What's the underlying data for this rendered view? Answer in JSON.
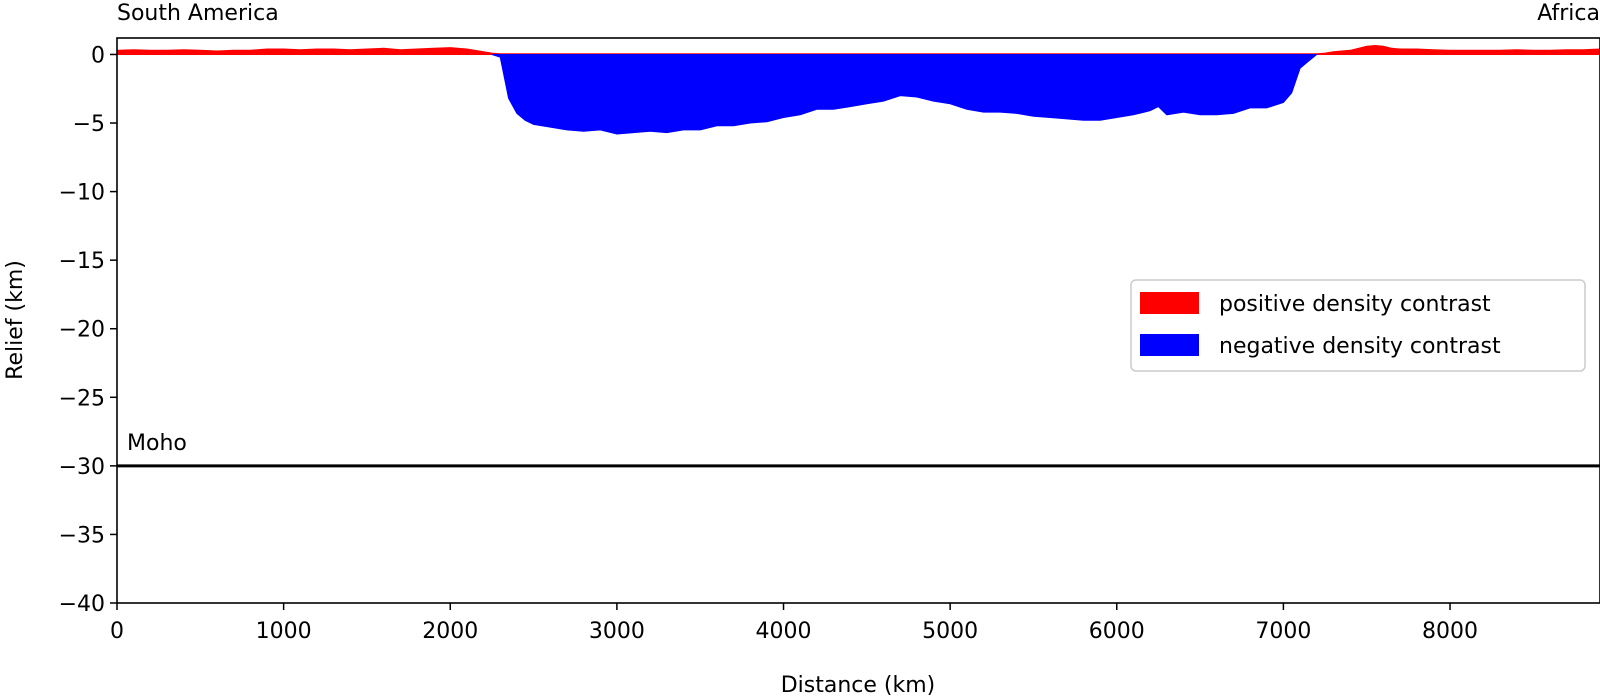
{
  "chart_data": {
    "type": "area",
    "xlabel": "Distance (km)",
    "ylabel": "Relief (km)",
    "xlim": [
      0,
      8900
    ],
    "ylim": [
      -40,
      1.2
    ],
    "xticks": [
      0,
      1000,
      2000,
      3000,
      4000,
      5000,
      6000,
      7000,
      8000
    ],
    "yticks": [
      0,
      -5,
      -10,
      -15,
      -20,
      -25,
      -30,
      -35,
      -40
    ],
    "ytick_labels": [
      "0",
      "−5",
      "−10",
      "−15",
      "−20",
      "−25",
      "−30",
      "−35",
      "−40"
    ],
    "grid": false,
    "legend_position": "center-right",
    "annotations": {
      "left": "South America",
      "right": "Africa",
      "moho": "Moho"
    },
    "moho_depth": -30,
    "series": [
      {
        "name": "positive density contrast",
        "color": "#ff0000",
        "x": [
          0,
          100,
          200,
          300,
          400,
          500,
          600,
          700,
          800,
          900,
          1000,
          1100,
          1200,
          1300,
          1400,
          1500,
          1600,
          1700,
          1800,
          1900,
          2000,
          2100,
          2200,
          2250,
          2300,
          7200,
          7250,
          7300,
          7400,
          7450,
          7500,
          7550,
          7600,
          7650,
          7700,
          7800,
          7900,
          8000,
          8100,
          8200,
          8300,
          8400,
          8500,
          8600,
          8700,
          8800,
          8900
        ],
        "y": [
          0.3,
          0.35,
          0.3,
          0.3,
          0.35,
          0.3,
          0.25,
          0.3,
          0.3,
          0.4,
          0.4,
          0.35,
          0.4,
          0.4,
          0.35,
          0.4,
          0.45,
          0.35,
          0.4,
          0.45,
          0.5,
          0.4,
          0.2,
          0.1,
          0.05,
          0.05,
          0.1,
          0.2,
          0.3,
          0.45,
          0.6,
          0.65,
          0.6,
          0.45,
          0.4,
          0.4,
          0.35,
          0.3,
          0.3,
          0.3,
          0.3,
          0.35,
          0.3,
          0.3,
          0.35,
          0.35,
          0.4
        ]
      },
      {
        "name": "negative density contrast",
        "color": "#0000ff",
        "x": [
          2250,
          2300,
          2350,
          2400,
          2450,
          2500,
          2600,
          2700,
          2800,
          2900,
          3000,
          3100,
          3200,
          3300,
          3400,
          3500,
          3600,
          3700,
          3800,
          3900,
          4000,
          4100,
          4200,
          4300,
          4400,
          4500,
          4600,
          4700,
          4800,
          4900,
          5000,
          5100,
          5200,
          5300,
          5400,
          5500,
          5600,
          5700,
          5800,
          5900,
          6000,
          6100,
          6200,
          6250,
          6300,
          6400,
          6500,
          6600,
          6700,
          6800,
          6900,
          7000,
          7050,
          7100,
          7150,
          7200
        ],
        "y": [
          0,
          -0.2,
          -3.2,
          -4.3,
          -4.8,
          -5.1,
          -5.3,
          -5.5,
          -5.6,
          -5.5,
          -5.8,
          -5.7,
          -5.6,
          -5.7,
          -5.5,
          -5.5,
          -5.2,
          -5.2,
          -5.0,
          -4.9,
          -4.6,
          -4.4,
          -4.0,
          -4.0,
          -3.8,
          -3.6,
          -3.4,
          -3.0,
          -3.1,
          -3.4,
          -3.6,
          -4.0,
          -4.2,
          -4.2,
          -4.3,
          -4.5,
          -4.6,
          -4.7,
          -4.8,
          -4.8,
          -4.6,
          -4.4,
          -4.1,
          -3.8,
          -4.4,
          -4.2,
          -4.4,
          -4.4,
          -4.3,
          -3.9,
          -3.9,
          -3.5,
          -2.8,
          -1.0,
          -0.5,
          0
        ]
      }
    ]
  }
}
